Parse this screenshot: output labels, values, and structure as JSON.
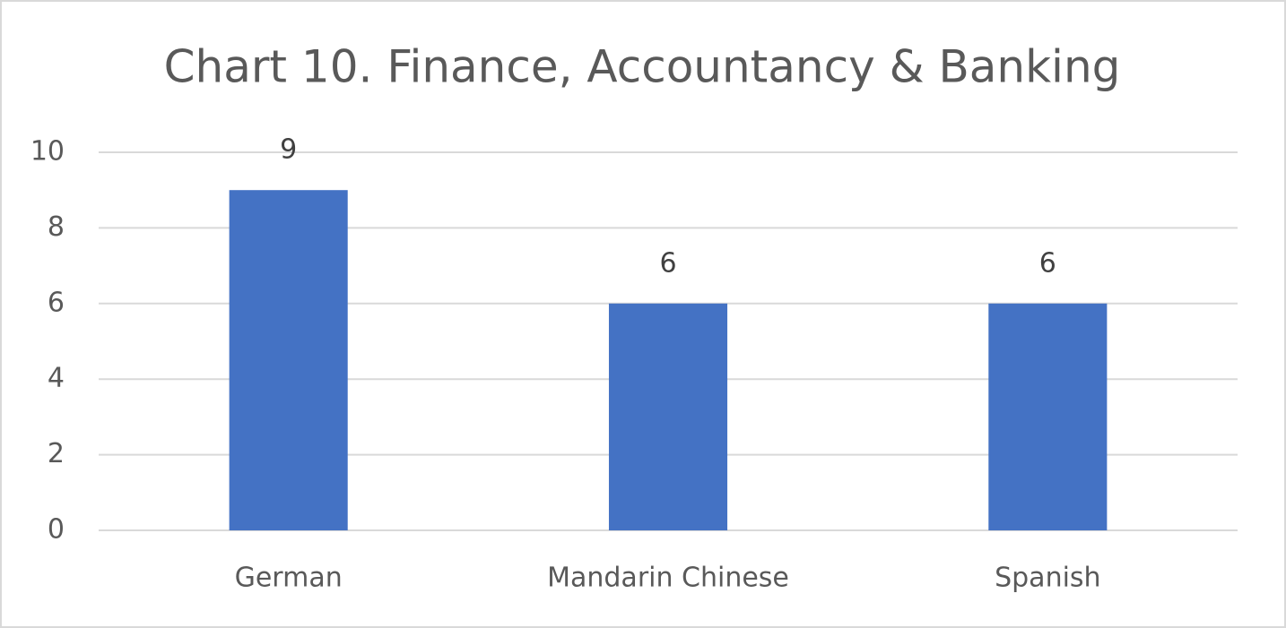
{
  "chart_data": {
    "type": "bar",
    "title": "Chart 10. Finance, Accountancy & Banking",
    "categories": [
      "German",
      "Mandarin Chinese",
      "Spanish"
    ],
    "values": [
      9,
      6,
      6
    ],
    "color": "#4472c4",
    "ylim": [
      0,
      10
    ],
    "yticks": [
      0,
      2,
      4,
      6,
      8,
      10
    ],
    "grid": true,
    "data_labels": true
  }
}
